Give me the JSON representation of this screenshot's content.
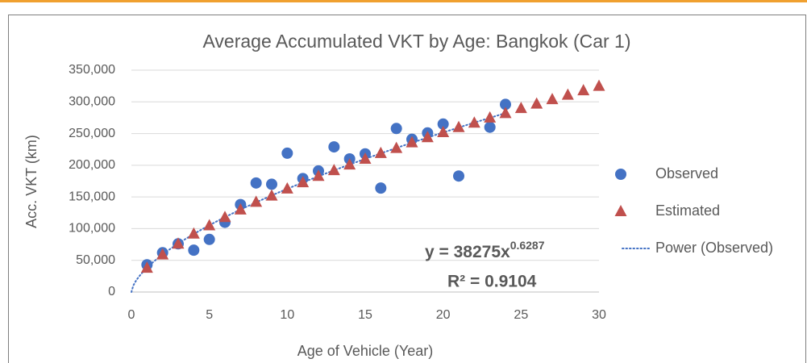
{
  "chart_data": {
    "type": "scatter",
    "title": "Average Accumulated VKT by Age: Bangkok (Car 1)",
    "x_label": "Age of Vehicle (Year)",
    "y_label": "Acc. VKT (km)",
    "xlim": [
      0,
      30
    ],
    "xticks": [
      0,
      5,
      10,
      15,
      20,
      25,
      30
    ],
    "ylim": [
      0,
      350000
    ],
    "yticks": [
      0,
      {
        "value": 50000,
        "label": "50,000"
      },
      {
        "value": 100000,
        "label": "100,000"
      },
      {
        "value": 150000,
        "label": "150,000"
      },
      {
        "value": 200000,
        "label": "200,000"
      },
      {
        "value": 250000,
        "label": "250,000"
      },
      {
        "value": 300000,
        "label": "300,000"
      },
      {
        "value": 350000,
        "label": "350,000"
      }
    ],
    "grid": true,
    "legend": "right",
    "series": [
      {
        "name": "Observed",
        "color": "#4472c4",
        "marker": "circle",
        "x": [
          1,
          2,
          3,
          4,
          5,
          6,
          7,
          8,
          9,
          10,
          11,
          12,
          13,
          14,
          15,
          16,
          17,
          18,
          19,
          20,
          21,
          23,
          24
        ],
        "values": [
          43000,
          62000,
          76000,
          66000,
          83000,
          110000,
          138000,
          172000,
          170000,
          219000,
          179000,
          191000,
          229000,
          210000,
          218000,
          164000,
          258000,
          241000,
          251000,
          265000,
          183000,
          260000,
          296000
        ]
      },
      {
        "name": "Estimated",
        "color": "#c0504d",
        "marker": "triangle",
        "x": [
          1,
          2,
          3,
          4,
          5,
          6,
          7,
          8,
          9,
          10,
          11,
          12,
          13,
          14,
          15,
          16,
          17,
          18,
          19,
          20,
          21,
          22,
          23,
          24,
          25,
          26,
          27,
          28,
          29,
          30
        ],
        "values": [
          38000,
          59000,
          76000,
          92000,
          105000,
          118000,
          130000,
          142000,
          152000,
          163000,
          173000,
          183000,
          192000,
          201000,
          210000,
          219000,
          227000,
          236000,
          244000,
          252000,
          260000,
          267000,
          275000,
          282000,
          290000,
          297000,
          304000,
          311000,
          318000,
          325000
        ]
      }
    ],
    "trendline": {
      "name": "Power (Observed)",
      "color": "#4472c4",
      "coefficient": 38275,
      "exponent": 0.6287,
      "equation": "y = 38275x",
      "equation_exponent": "0.6287",
      "r_squared": "R² = 0.9104"
    }
  }
}
